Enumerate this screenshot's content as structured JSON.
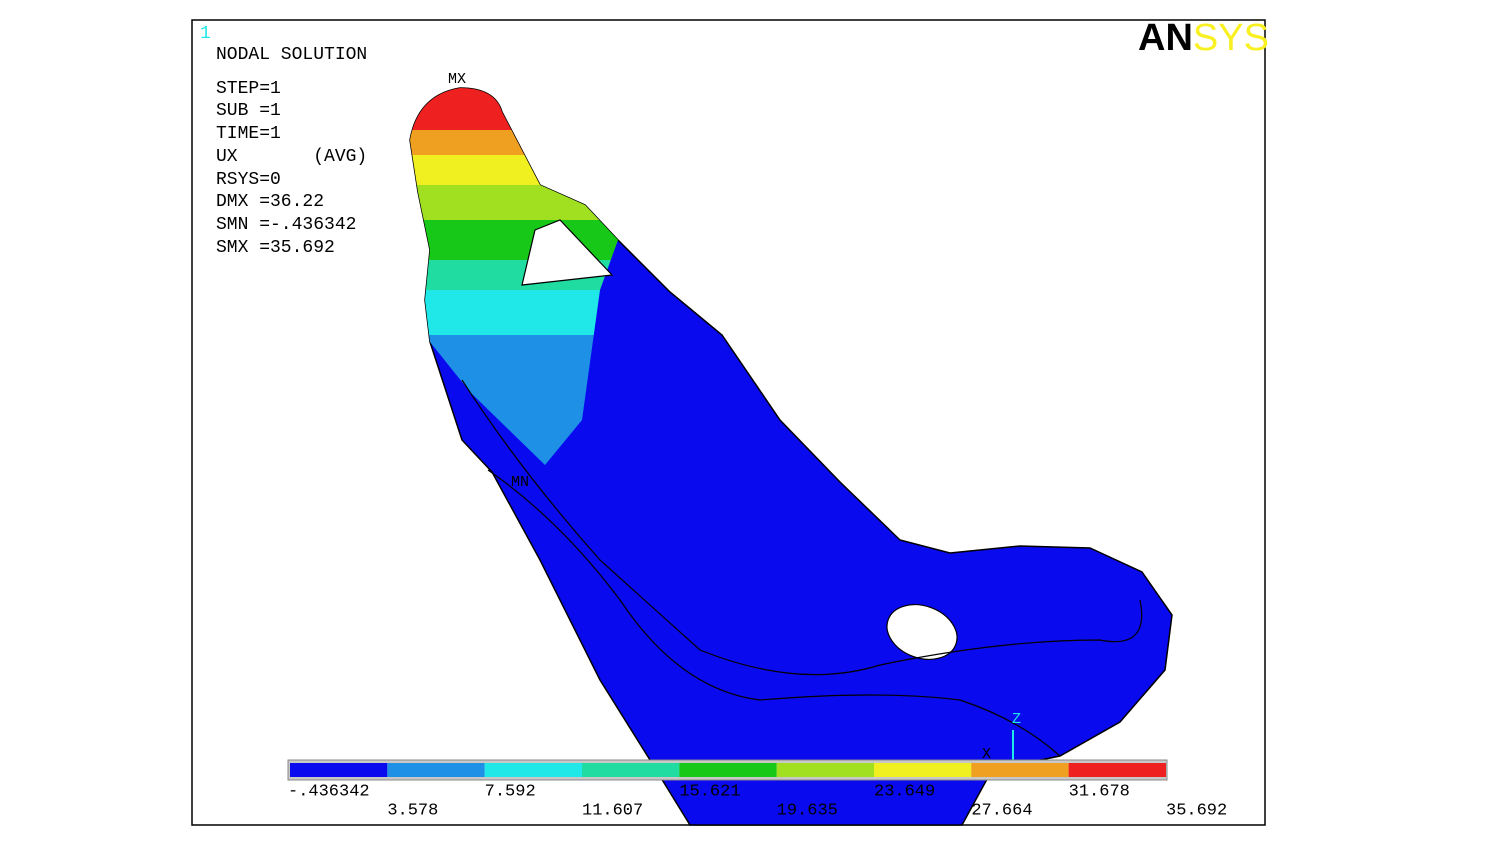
{
  "window_number": "1",
  "title": "NODAL SOLUTION",
  "info": [
    "STEP=1",
    "SUB =1",
    "TIME=1",
    "UX       (AVG)",
    "RSYS=0",
    "DMX =36.22",
    "SMN =-.436342",
    "SMX =35.692"
  ],
  "logo": {
    "left": "AN",
    "right": "SYS"
  },
  "markers": {
    "max": "MX",
    "min": "MN"
  },
  "triad": {
    "z": "Z",
    "x": "X"
  },
  "legend": {
    "colors": [
      "#0a0aee",
      "#1e90e6",
      "#20e8e8",
      "#20dca0",
      "#18c818",
      "#a0e020",
      "#f0f020",
      "#f0a020",
      "#ee2020"
    ],
    "labels": [
      "-.436342",
      "3.578",
      "7.592",
      "11.607",
      "15.621",
      "19.635",
      "23.649",
      "27.664",
      "31.678",
      "35.692"
    ]
  }
}
